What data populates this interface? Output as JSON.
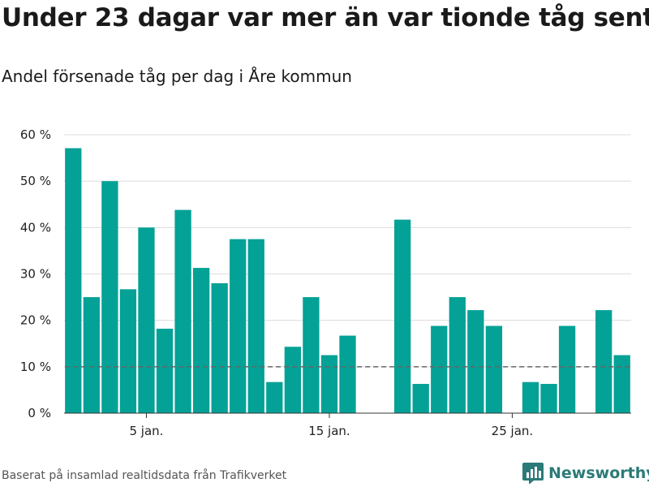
{
  "header": {
    "title": "Under 23 dagar var mer än var tionde tåg sent",
    "subtitle": "Andel försenade tåg per dag i Åre kommun"
  },
  "footer": {
    "source": "Baserat på insamlad realtidsdata från Trafikverket",
    "brand": "Newsworthy"
  },
  "colors": {
    "bar": "#04a196",
    "reference_line": "#666666",
    "grid": "#dcdcdc",
    "brand": "#2b7a78"
  },
  "chart_data": {
    "type": "bar",
    "x": [
      1,
      2,
      3,
      4,
      5,
      6,
      7,
      8,
      9,
      10,
      11,
      12,
      13,
      14,
      15,
      16,
      17,
      18,
      19,
      20,
      21,
      22,
      23,
      24,
      25,
      26,
      27,
      28,
      29,
      30,
      31
    ],
    "values": [
      57.1,
      25.0,
      50.0,
      26.7,
      40.0,
      18.2,
      43.8,
      31.3,
      28.0,
      37.5,
      37.5,
      6.7,
      14.3,
      25.0,
      12.5,
      16.7,
      null,
      null,
      41.7,
      6.3,
      18.8,
      25.0,
      22.2,
      18.8,
      null,
      6.7,
      6.3,
      18.8,
      null,
      22.2,
      12.5
    ],
    "xticks": [
      5,
      15,
      25
    ],
    "xtick_labels": [
      "5 jan.",
      "15 jan.",
      "25 jan."
    ],
    "yticks": [
      0,
      10,
      20,
      30,
      40,
      50,
      60
    ],
    "ytick_labels": [
      "0 %",
      "10 %",
      "20 %",
      "30 %",
      "40 %",
      "50 %",
      "60 %"
    ],
    "ylim": [
      0,
      60
    ],
    "xlim": [
      0.5,
      31.5
    ],
    "reference_line": 10,
    "grid": true
  }
}
